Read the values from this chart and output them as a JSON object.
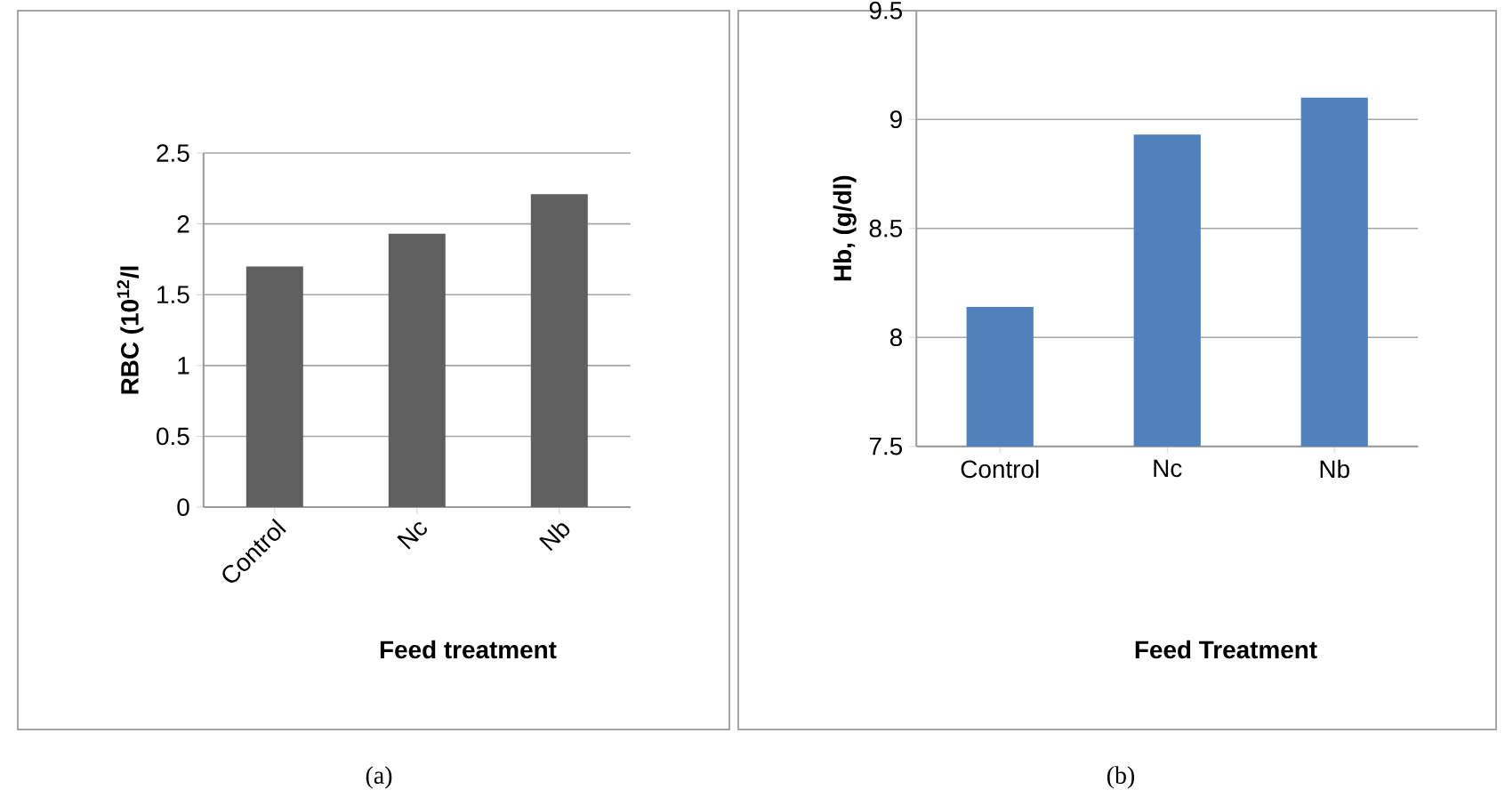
{
  "chart_data": [
    {
      "type": "bar",
      "categories": [
        "Control",
        "Nc",
        "Nb"
      ],
      "values": [
        1.7,
        1.93,
        2.21
      ],
      "color": "#606060",
      "ylim": [
        0,
        2.5
      ],
      "yticks": [
        0,
        0.5,
        1,
        1.5,
        2,
        2.5
      ],
      "grid": "y",
      "xlabel": "Feed treatment",
      "ylabel": "RBC (10$^{12}$/l",
      "annotations": [
        "(a)"
      ]
    },
    {
      "type": "bar",
      "categories": [
        "Control",
        "Nc",
        "Nb"
      ],
      "values": [
        8.14,
        8.93,
        9.1
      ],
      "color": "#4f81bd",
      "ylim": [
        7.5,
        9.5
      ],
      "yticks": [
        7.5,
        8,
        8.5,
        9,
        9.5
      ],
      "grid": "y",
      "xlabel": "Feed Treatment",
      "ylabel": "Hb, (g/dl)",
      "annotations": [
        "(b)"
      ]
    }
  ]
}
